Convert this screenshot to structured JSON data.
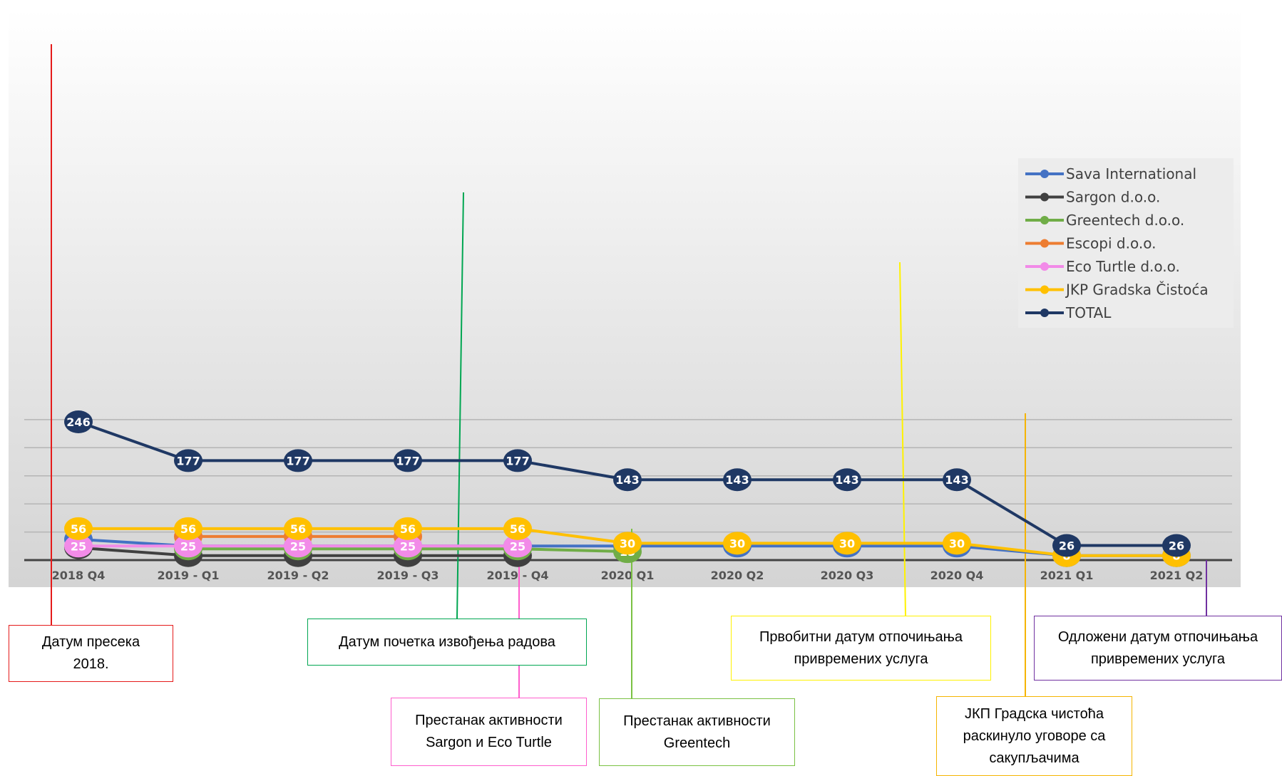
{
  "chart_data": {
    "type": "line",
    "categories": [
      "2018 Q4",
      "2019 - Q1",
      "2019 - Q2",
      "2019 - Q3",
      "2019 - Q4",
      "2020 Q1",
      "2020 Q2",
      "2020 Q3",
      "2020 Q4",
      "2021 Q1",
      "2021 Q2"
    ],
    "ylim": [
      0,
      260
    ],
    "grid": true,
    "legend_position": "right",
    "series": [
      {
        "name": "Sava International",
        "color": "#4472C4",
        "values": [
          37,
          25,
          25,
          25,
          25,
          25,
          25,
          25,
          25,
          8,
          8
        ]
      },
      {
        "name": "Sargon d.o.o.",
        "color": "#404040",
        "values": [
          22,
          8,
          8,
          8,
          8,
          null,
          null,
          null,
          null,
          null,
          null
        ]
      },
      {
        "name": "Greentech d.o.o.",
        "color": "#70AD47",
        "values": [
          null,
          20,
          20,
          20,
          20,
          15,
          null,
          null,
          null,
          null,
          null
        ]
      },
      {
        "name": "Escopi d.o.o.",
        "color": "#ED7D31",
        "values": [
          null,
          42,
          42,
          42,
          null,
          null,
          null,
          null,
          null,
          null,
          null
        ]
      },
      {
        "name": "Eco Turtle d.o.o.",
        "color": "#F28BE8",
        "values": [
          25,
          25,
          25,
          25,
          25,
          null,
          null,
          null,
          null,
          null,
          null
        ]
      },
      {
        "name": "JKP Gradska Čistoća",
        "color": "#FFC000",
        "values": [
          56,
          56,
          56,
          56,
          56,
          30,
          30,
          30,
          30,
          8,
          8
        ]
      },
      {
        "name": "TOTAL",
        "color": "#1F3864",
        "values": [
          246,
          177,
          177,
          177,
          177,
          143,
          143,
          143,
          143,
          26,
          26
        ]
      }
    ]
  },
  "callouts": [
    {
      "lines": [
        "Датум пресека",
        "2018."
      ],
      "color": "#E51A1A"
    },
    {
      "lines": [
        "Датум почетка извођења радова"
      ],
      "color": "#00A651"
    },
    {
      "lines": [
        "Престанак активности",
        "Sargon и Eco Turtle"
      ],
      "color": "#FF5ECD"
    },
    {
      "lines": [
        "Престанак активности",
        "Greentech"
      ],
      "color": "#7AC143"
    },
    {
      "lines": [
        "Првобитни датум отпочињања",
        "привремених услуга"
      ],
      "color": "#FFF200"
    },
    {
      "lines": [
        "ЈКП Градска чистоћа",
        "раскинуло уговоре са",
        "сакупљачима"
      ],
      "color": "#F5B400"
    },
    {
      "lines": [
        "Одложени датум отпочињања",
        "привремених услуга"
      ],
      "color": "#7030A0"
    }
  ]
}
